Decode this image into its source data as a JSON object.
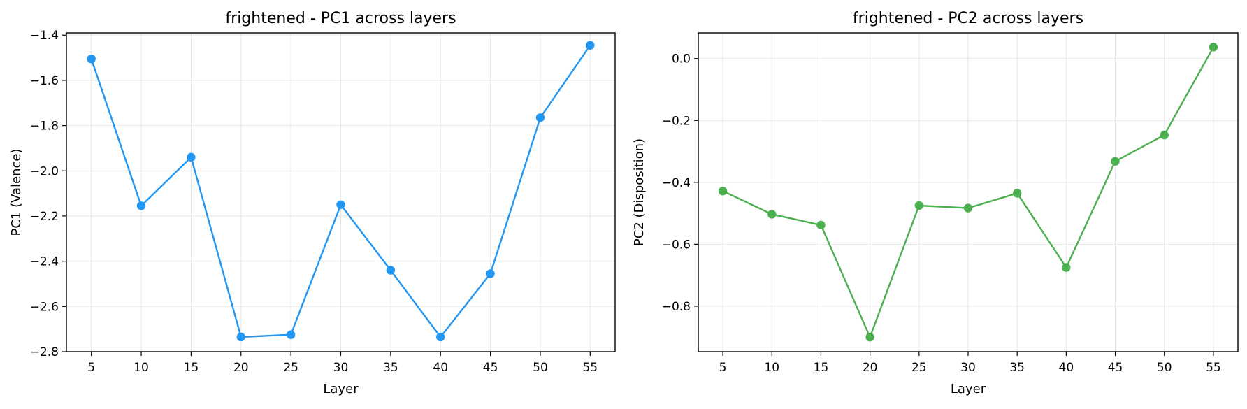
{
  "chart_data": [
    {
      "type": "line",
      "title": "frightened - PC1 across layers",
      "xlabel": "Layer",
      "ylabel": "PC1 (Valence)",
      "x": [
        5,
        10,
        15,
        20,
        25,
        30,
        35,
        40,
        45,
        50,
        55
      ],
      "xticks": [
        "5",
        "10",
        "15",
        "20",
        "25",
        "30",
        "35",
        "40",
        "45",
        "50",
        "55"
      ],
      "xlim": [
        2.5,
        57.5
      ],
      "ylim": [
        -2.8,
        -1.39
      ],
      "yticks": [
        "−2.8",
        "−2.6",
        "−2.4",
        "−2.2",
        "−2.0",
        "−1.8",
        "−1.6",
        "−1.4"
      ],
      "ytick_values": [
        -2.8,
        -2.6,
        -2.4,
        -2.2,
        -2.0,
        -1.8,
        -1.6,
        -1.4
      ],
      "grid": true,
      "series": [
        {
          "color": "#2196f3",
          "marker": "circle",
          "values": [
            -1.505,
            -2.155,
            -1.94,
            -2.735,
            -2.725,
            -2.15,
            -2.44,
            -2.735,
            -2.455,
            -1.765,
            -1.445
          ]
        }
      ]
    },
    {
      "type": "line",
      "title": "frightened - PC2 across layers",
      "xlabel": "Layer",
      "ylabel": "PC2 (Disposition)",
      "x": [
        5,
        10,
        15,
        20,
        25,
        30,
        35,
        40,
        45,
        50,
        55
      ],
      "xticks": [
        "5",
        "10",
        "15",
        "20",
        "25",
        "30",
        "35",
        "40",
        "45",
        "50",
        "55"
      ],
      "xlim": [
        2.5,
        57.5
      ],
      "ylim": [
        -0.947,
        0.083
      ],
      "yticks": [
        "−0.8",
        "−0.6",
        "−0.4",
        "−0.2",
        "0.0"
      ],
      "ytick_values": [
        -0.8,
        -0.6,
        -0.4,
        -0.2,
        0.0
      ],
      "grid": true,
      "series": [
        {
          "color": "#4caf50",
          "marker": "circle",
          "values": [
            -0.428,
            -0.503,
            -0.538,
            -0.9,
            -0.475,
            -0.483,
            -0.435,
            -0.675,
            -0.332,
            -0.247,
            0.037
          ]
        }
      ]
    }
  ]
}
